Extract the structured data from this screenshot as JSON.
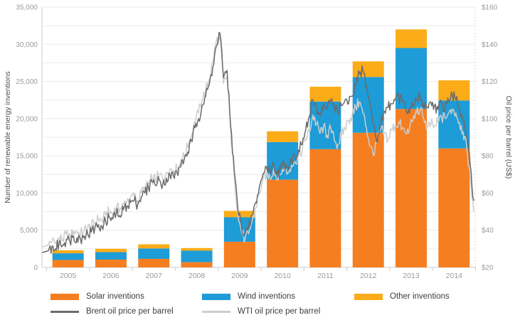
{
  "chart_data": {
    "type": "bar",
    "subtype": "stacked-bars-with-lines",
    "title": "",
    "categories": [
      2005,
      2006,
      2007,
      2008,
      2009,
      2010,
      2011,
      2012,
      2013,
      2014
    ],
    "bar_series": [
      {
        "name": "Solar inventions",
        "color": "#F57E20",
        "values": [
          1000,
          1050,
          1150,
          700,
          3450,
          11800,
          15900,
          18100,
          21300,
          16000
        ]
      },
      {
        "name": "Wind inventions",
        "color": "#1E9CD7",
        "values": [
          900,
          1000,
          1400,
          1550,
          3300,
          5050,
          6400,
          7500,
          8200,
          6450
        ]
      },
      {
        "name": "Other inventions",
        "color": "#FBAC18",
        "values": [
          400,
          450,
          550,
          350,
          850,
          1450,
          2000,
          2100,
          2500,
          2700
        ]
      }
    ],
    "line_series": [
      {
        "name": "Brent oil price per barrel",
        "color": "#6B6B6B",
        "axis": "right",
        "monthly_values": [
          29,
          31,
          30,
          33,
          32,
          35,
          34,
          37,
          36,
          35,
          37,
          38,
          39,
          41,
          43,
          42,
          45,
          47,
          46,
          49,
          48,
          51,
          53,
          55,
          56,
          54,
          58,
          60,
          63,
          66,
          64,
          67,
          65,
          68,
          70,
          69,
          71,
          74,
          78,
          82,
          88,
          95,
          100,
          107,
          112,
          118,
          128,
          139,
          146,
          122,
          126,
          96,
          72,
          52,
          42,
          38,
          41,
          48,
          55,
          63,
          70,
          74,
          71,
          76,
          70,
          73,
          76,
          74,
          78,
          80,
          83,
          86,
          94,
          101,
          110,
          106,
          103,
          108,
          105,
          110,
          107,
          104,
          107,
          110,
          108,
          112,
          118,
          124,
          126,
          118,
          108,
          96,
          87,
          97,
          104,
          106,
          108,
          110,
          112,
          109,
          105,
          103,
          107,
          110,
          112,
          108,
          106,
          109,
          107,
          105,
          108,
          106,
          109,
          113,
          110,
          105,
          99,
          90,
          75,
          56
        ]
      },
      {
        "name": "WTI oil price per barrel",
        "color": "#CDCDCD",
        "axis": "right",
        "monthly_values": [
          32,
          34,
          33,
          36,
          35,
          38,
          37,
          40,
          39,
          38,
          40,
          41,
          42,
          44,
          46,
          45,
          48,
          50,
          49,
          52,
          51,
          54,
          56,
          58,
          58,
          56,
          60,
          62,
          65,
          68,
          67,
          70,
          68,
          71,
          73,
          72,
          73,
          76,
          80,
          85,
          91,
          98,
          103,
          110,
          115,
          121,
          131,
          142,
          143,
          119,
          123,
          93,
          69,
          49,
          39,
          35,
          38,
          45,
          52,
          60,
          67,
          71,
          68,
          73,
          67,
          70,
          73,
          71,
          75,
          77,
          80,
          83,
          89,
          93,
          102,
          97,
          92,
          96,
          91,
          95,
          88,
          86,
          91,
          95,
          99,
          102,
          106,
          109,
          103,
          95,
          85,
          80,
          88,
          94,
          92,
          89,
          94,
          96,
          98,
          95,
          92,
          94,
          99,
          103,
          105,
          100,
          95,
          97,
          96,
          98,
          101,
          100,
          103,
          105,
          103,
          98,
          93,
          85,
          70,
          50
        ]
      }
    ],
    "y_left": {
      "label": "Number of renewable energy inventions",
      "min": 0,
      "max": 35000,
      "grid_step": 2500,
      "tick_values": [
        0,
        5000,
        10000,
        15000,
        20000,
        25000,
        30000,
        35000
      ],
      "tick_labels": [
        "0",
        "5,000",
        "10,000",
        "15,000",
        "20,000",
        "25,000",
        "30,000",
        "35,000"
      ]
    },
    "y_right": {
      "label": "Oil price per barrel (US$)",
      "min": 20,
      "max": 160,
      "tick_values": [
        20,
        40,
        60,
        80,
        100,
        120,
        140,
        160
      ],
      "tick_labels": [
        "$20",
        "$40",
        "$60",
        "$80",
        "$100",
        "$120",
        "$140",
        "$160"
      ]
    },
    "x_tick_labels": [
      "2005",
      "2006",
      "2007",
      "2008",
      "2009",
      "2010",
      "2011",
      "2012",
      "2013",
      "2014"
    ],
    "grid": true,
    "legend_position": "bottom"
  },
  "legend": {
    "items": [
      {
        "label": "Solar inventions",
        "color": "#F57E20",
        "type": "box"
      },
      {
        "label": "Wind inventions",
        "color": "#1E9CD7",
        "type": "box"
      },
      {
        "label": "Other inventions",
        "color": "#FBAC18",
        "type": "box"
      },
      {
        "label": "Brent oil price per barrel",
        "color": "#6B6B6B",
        "type": "line"
      },
      {
        "label": "WTI oil price per barrel",
        "color": "#CDCDCD",
        "type": "line"
      }
    ]
  },
  "colors": {
    "background": "#FFFFFF",
    "grid": "#EBEBEB",
    "axis": "#CCCCCC",
    "tick_text": "#9B9B9B",
    "axis_title": "#4D4D4D",
    "legend_text": "#3D3D3D"
  }
}
